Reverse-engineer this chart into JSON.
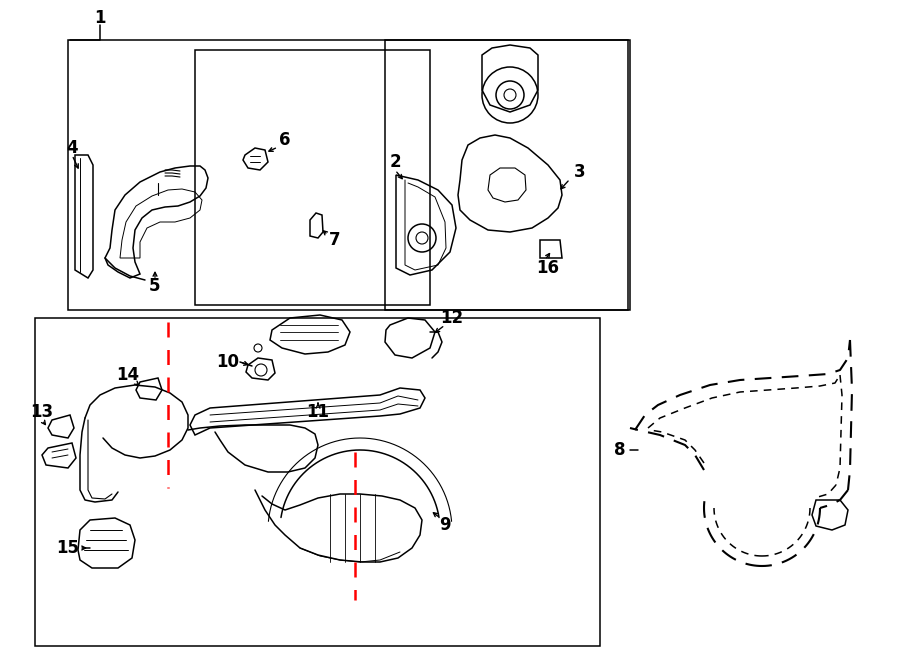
{
  "bg_color": "#ffffff",
  "lc": "#000000",
  "rc": "#ff0000",
  "figw": 9.0,
  "figh": 6.61,
  "dpi": 100,
  "fs": 12
}
